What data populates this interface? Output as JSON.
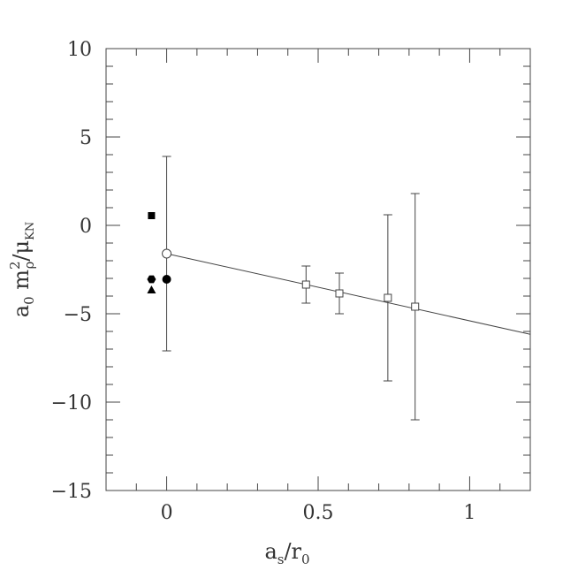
{
  "chart_data": {
    "type": "scatter",
    "title": "",
    "xlabel": "a_s/r_0",
    "ylabel": "a_0 m_ρ^2/μ_KN",
    "xlim": [
      -0.2,
      1.2
    ],
    "ylim": [
      -15,
      10
    ],
    "xticks": [
      0,
      0.5,
      1
    ],
    "xtick_labels": [
      "0",
      "0.5",
      "1"
    ],
    "yticks": [
      -15,
      -10,
      -5,
      0,
      5,
      10
    ],
    "ytick_labels": [
      "−15",
      "−10",
      "−5",
      "0",
      "5",
      "10"
    ],
    "grid": false,
    "series": [
      {
        "marker": "open-square",
        "points": [
          {
            "x": 0.46,
            "y": -3.35,
            "err": 1.05
          },
          {
            "x": 0.57,
            "y": -3.85,
            "err": 1.15
          },
          {
            "x": 0.73,
            "y": -4.1,
            "err": 4.7
          },
          {
            "x": 0.82,
            "y": -4.6,
            "err": 6.4
          }
        ]
      },
      {
        "marker": "open-circle",
        "points": [
          {
            "x": 0.0,
            "y": -1.6,
            "err": 5.5
          }
        ]
      },
      {
        "marker": "filled-square",
        "points": [
          {
            "x": -0.05,
            "y": 0.55
          }
        ]
      },
      {
        "marker": "filled-hexagon",
        "points": [
          {
            "x": -0.05,
            "y": -3.05
          }
        ]
      },
      {
        "marker": "filled-triangle",
        "points": [
          {
            "x": -0.05,
            "y": -3.65
          }
        ]
      },
      {
        "marker": "filled-circle",
        "points": [
          {
            "x": 0.0,
            "y": -3.05
          }
        ]
      }
    ],
    "fit_line": {
      "intercept": -1.6,
      "slope": -3.8
    }
  }
}
